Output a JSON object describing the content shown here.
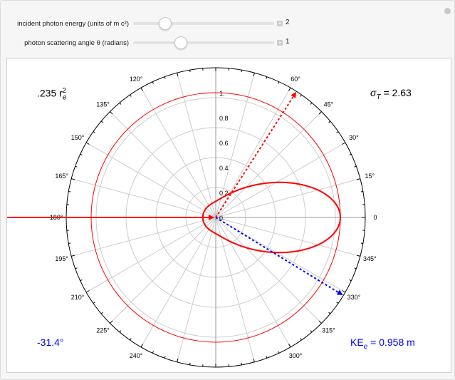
{
  "controls": [
    {
      "label": "incident photon energy (units of m c²)",
      "value": "2",
      "fraction": 0.2
    },
    {
      "label": "photon scattering angle θ (radians)",
      "value": "1",
      "fraction": 0.32
    }
  ],
  "plot": {
    "cross_section_label": ".235 r",
    "sigma_label": "σ",
    "sigma_sub": "T",
    "sigma_value": " = 2.63",
    "electron_angle": "-31.4°",
    "ke_label": "KE",
    "ke_sub": "e",
    "ke_value": " = 0.958 m",
    "radial_labels": [
      "0.",
      "0.2",
      "0.4",
      "0.6",
      "0.8",
      "1."
    ],
    "angle_labels": [
      "0°",
      "15°",
      "30°",
      "45°",
      "60°",
      "120°",
      "135°",
      "150°",
      "165°",
      "180°",
      "195°",
      "210°",
      "225°",
      "240°",
      "300°",
      "315°",
      "330°",
      "345°"
    ],
    "photon_energy": 2,
    "scatter_angle_rad": 1,
    "electron_angle_deg": -31.4,
    "colors": {
      "photon": "#ff0000",
      "electron": "#0000ff",
      "grid": "#cccccc"
    }
  }
}
